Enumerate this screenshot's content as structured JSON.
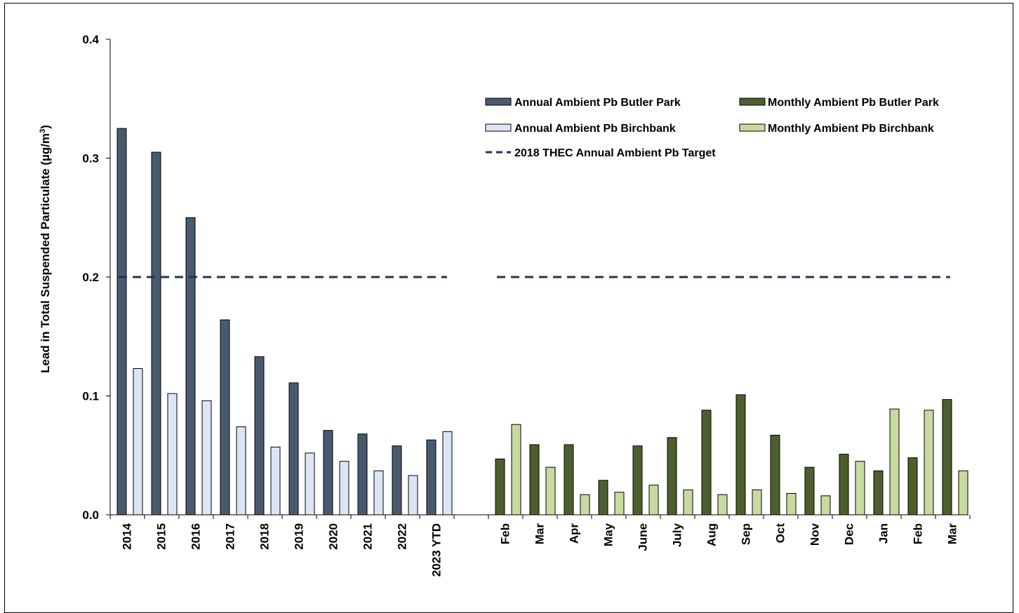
{
  "chart_data": {
    "type": "bar",
    "ylabel_main": "Lead in Total Suspended Particulate  (µg/m",
    "ylabel_sup": "3",
    "ylabel_end": ")",
    "ylim": [
      0,
      0.4
    ],
    "yticks": [
      "0.0",
      "0.1",
      "0.2",
      "0.3",
      "0.4"
    ],
    "ytick_values": [
      0,
      0.1,
      0.2,
      0.3,
      0.4
    ],
    "legend_position": "top-right",
    "annual": {
      "categories": [
        "2014",
        "2015",
        "2016",
        "2017",
        "2018",
        "2019",
        "2020",
        "2021",
        "2022",
        "2023 YTD"
      ],
      "series": [
        {
          "name": "Annual Ambient Pb Butler Park",
          "color": "#4a5a6e",
          "values": [
            0.325,
            0.305,
            0.25,
            0.164,
            0.133,
            0.111,
            0.071,
            0.068,
            0.058,
            0.063
          ]
        },
        {
          "name": "Annual Ambient Pb Birchbank",
          "color": "#dbe5f6",
          "values": [
            0.123,
            0.102,
            0.096,
            0.074,
            0.057,
            0.052,
            0.045,
            0.037,
            0.033,
            0.07
          ]
        }
      ]
    },
    "monthly": {
      "categories": [
        "Feb",
        "Mar",
        "Apr",
        "May",
        "June",
        "July",
        "Aug",
        "Sep",
        "Oct",
        "Nov",
        "Dec",
        "Jan",
        "Feb",
        "Mar"
      ],
      "series": [
        {
          "name": "Monthly Ambient Pb Butler Park",
          "color": "#4e5f2e",
          "values": [
            0.047,
            0.059,
            0.059,
            0.029,
            0.058,
            0.065,
            0.088,
            0.101,
            0.067,
            0.04,
            0.051,
            0.037,
            0.048,
            0.097
          ]
        },
        {
          "name": "Monthly Ambient Pb Birchbank",
          "color": "#c8daa0",
          "values": [
            0.076,
            0.04,
            0.017,
            0.019,
            0.025,
            0.021,
            0.017,
            0.021,
            0.018,
            0.016,
            0.045,
            0.089,
            0.088,
            0.037
          ]
        }
      ]
    },
    "target": {
      "name": "2018 THEC Annual Ambient Pb Target",
      "value": 0.2,
      "color": "#1f3550"
    }
  }
}
